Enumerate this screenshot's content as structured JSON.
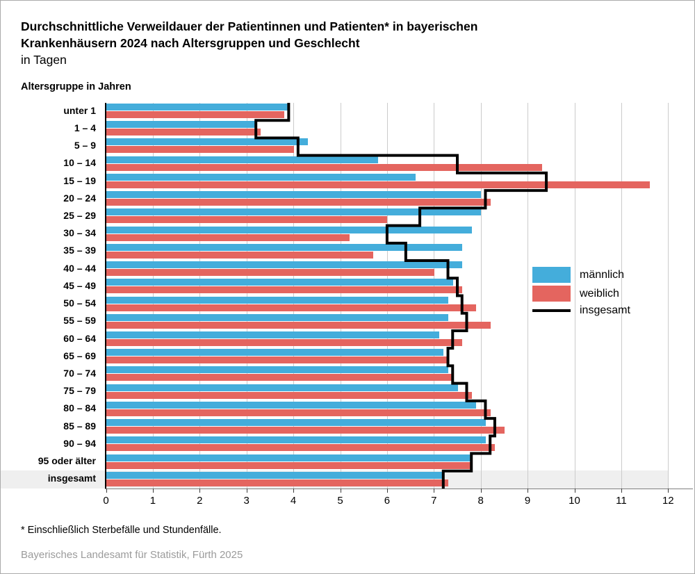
{
  "title": {
    "line1": "Durchschnittliche Verweildauer der Patientinnen und Patienten* in bayerischen",
    "line2": "Krankenhäusern 2024 nach Altersgruppen und Geschlecht",
    "line3": "in Tagen"
  },
  "axis_note": "Altersgruppe in Jahren",
  "footnote": "* Einschließlich Sterbefälle und Stundenfälle.",
  "source": "Bayerisches Landesamt für Statistik, Fürth 2025",
  "legend": {
    "maennlich": "männlich",
    "weiblich": "weiblich",
    "insgesamt": "insgesamt"
  },
  "colors": {
    "male": "#44ADDB",
    "female": "#E4655F",
    "total": "#000000",
    "grid": "#cbcbcb",
    "highlight_band": "#efefef"
  },
  "chart_data": {
    "type": "bar",
    "orientation": "horizontal",
    "title": "Durchschnittliche Verweildauer der Patientinnen und Patienten* in bayerischen Krankenhäusern 2024 nach Altersgruppen und Geschlecht",
    "xlabel": "in Tagen",
    "ylabel": "Altersgruppe in Jahren",
    "xlim": [
      0,
      12
    ],
    "xticks": [
      0,
      1,
      2,
      3,
      4,
      5,
      6,
      7,
      8,
      9,
      10,
      11,
      12
    ],
    "grid": true,
    "legend_position": "right-middle",
    "highlight_category": "insgesamt",
    "categories": [
      "unter 1",
      "1 – 4",
      "5 – 9",
      "10 – 14",
      "15 – 19",
      "20 – 24",
      "25 – 29",
      "30 – 34",
      "35 – 39",
      "40 – 44",
      "45 – 49",
      "50 – 54",
      "55 – 59",
      "60 – 64",
      "65 – 69",
      "70 – 74",
      "75 – 79",
      "80 – 84",
      "85 – 89",
      "90 – 94",
      "95 oder älter",
      "insgesamt"
    ],
    "series": [
      {
        "name": "männlich",
        "style": "bar",
        "color": "#44ADDB",
        "values": [
          3.9,
          3.2,
          4.3,
          5.8,
          6.6,
          8.0,
          8.0,
          7.8,
          7.6,
          7.6,
          7.4,
          7.3,
          7.3,
          7.1,
          7.2,
          7.3,
          7.5,
          7.9,
          8.1,
          8.1,
          7.8,
          7.2
        ]
      },
      {
        "name": "weiblich",
        "style": "bar",
        "color": "#E4655F",
        "values": [
          3.8,
          3.3,
          4.0,
          9.3,
          11.6,
          8.2,
          6.0,
          5.2,
          5.7,
          7.0,
          7.6,
          7.9,
          8.2,
          7.6,
          7.3,
          7.4,
          7.8,
          8.2,
          8.5,
          8.3,
          7.8,
          7.3
        ]
      },
      {
        "name": "insgesamt",
        "style": "step-line",
        "color": "#000000",
        "values": [
          3.9,
          3.2,
          4.1,
          7.5,
          9.4,
          8.1,
          6.7,
          6.0,
          6.4,
          7.3,
          7.5,
          7.6,
          7.7,
          7.4,
          7.3,
          7.4,
          7.7,
          8.1,
          8.3,
          8.2,
          7.8,
          7.2
        ]
      }
    ]
  }
}
